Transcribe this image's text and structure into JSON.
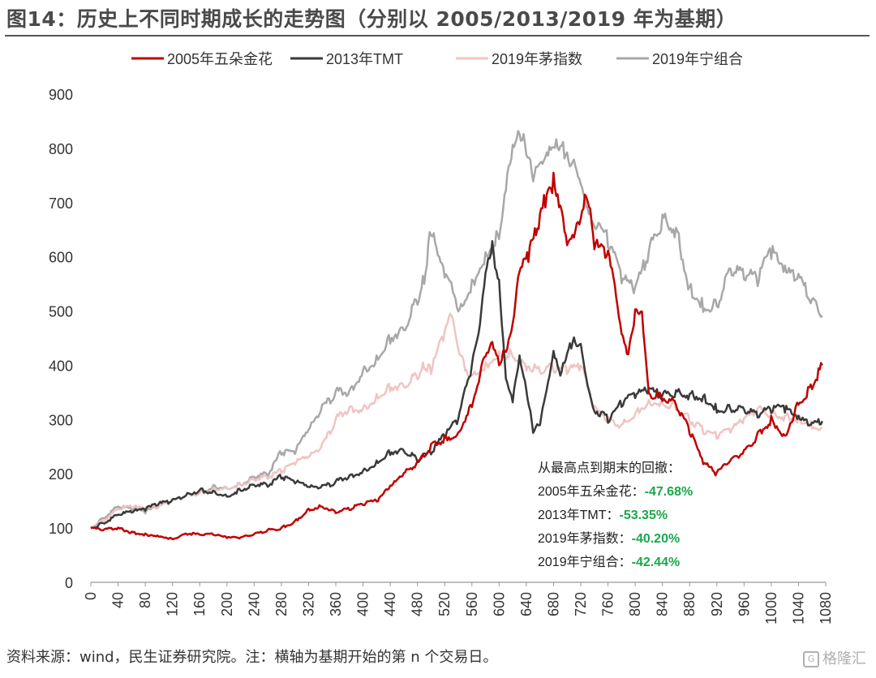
{
  "title": "图14：历史上不同时期成长的走势图（分别以 2005/2013/2019 年为基期）",
  "footer": "资料来源：wind，民生证券研究院。注：横轴为基期开始的第 n 个交易日。",
  "watermark": "格隆汇",
  "chart_data": {
    "type": "line",
    "xlim": [
      0,
      1080
    ],
    "ylim": [
      0,
      900
    ],
    "x_ticks": [
      0,
      40,
      80,
      120,
      160,
      200,
      240,
      280,
      320,
      360,
      400,
      440,
      480,
      520,
      560,
      600,
      640,
      680,
      720,
      760,
      800,
      840,
      880,
      920,
      960,
      1000,
      1040,
      1080
    ],
    "y_ticks": [
      0,
      100,
      200,
      300,
      400,
      500,
      600,
      700,
      800,
      900
    ],
    "legend_position": "top",
    "series": [
      {
        "name": "2005年五朵金花",
        "color": "#c00000",
        "width": 2.5,
        "points": [
          [
            0,
            100
          ],
          [
            20,
            97
          ],
          [
            40,
            100
          ],
          [
            60,
            92
          ],
          [
            80,
            88
          ],
          [
            100,
            86
          ],
          [
            120,
            80
          ],
          [
            140,
            90
          ],
          [
            160,
            88
          ],
          [
            180,
            88
          ],
          [
            200,
            82
          ],
          [
            220,
            82
          ],
          [
            240,
            88
          ],
          [
            260,
            96
          ],
          [
            280,
            100
          ],
          [
            300,
            112
          ],
          [
            320,
            135
          ],
          [
            340,
            140
          ],
          [
            360,
            130
          ],
          [
            380,
            135
          ],
          [
            400,
            145
          ],
          [
            420,
            150
          ],
          [
            440,
            175
          ],
          [
            460,
            200
          ],
          [
            480,
            220
          ],
          [
            500,
            250
          ],
          [
            520,
            265
          ],
          [
            540,
            275
          ],
          [
            560,
            330
          ],
          [
            580,
            420
          ],
          [
            590,
            450
          ],
          [
            600,
            400
          ],
          [
            610,
            430
          ],
          [
            620,
            470
          ],
          [
            630,
            570
          ],
          [
            645,
            610
          ],
          [
            660,
            670
          ],
          [
            670,
            715
          ],
          [
            680,
            740
          ],
          [
            690,
            700
          ],
          [
            700,
            630
          ],
          [
            710,
            650
          ],
          [
            720,
            680
          ],
          [
            730,
            715
          ],
          [
            740,
            620
          ],
          [
            760,
            610
          ],
          [
            770,
            540
          ],
          [
            780,
            450
          ],
          [
            790,
            420
          ],
          [
            800,
            500
          ],
          [
            810,
            500
          ],
          [
            820,
            350
          ],
          [
            840,
            340
          ],
          [
            860,
            330
          ],
          [
            880,
            280
          ],
          [
            900,
            220
          ],
          [
            920,
            200
          ],
          [
            940,
            225
          ],
          [
            960,
            240
          ],
          [
            980,
            270
          ],
          [
            1000,
            300
          ],
          [
            1020,
            270
          ],
          [
            1040,
            330
          ],
          [
            1060,
            360
          ],
          [
            1075,
            400
          ]
        ]
      },
      {
        "name": "2013年TMT",
        "color": "#3a3a3a",
        "width": 2.5,
        "points": [
          [
            0,
            100
          ],
          [
            20,
            110
          ],
          [
            40,
            125
          ],
          [
            60,
            130
          ],
          [
            80,
            135
          ],
          [
            100,
            145
          ],
          [
            120,
            150
          ],
          [
            140,
            160
          ],
          [
            160,
            170
          ],
          [
            180,
            165
          ],
          [
            200,
            160
          ],
          [
            220,
            170
          ],
          [
            240,
            180
          ],
          [
            260,
            180
          ],
          [
            280,
            195
          ],
          [
            300,
            185
          ],
          [
            320,
            175
          ],
          [
            340,
            175
          ],
          [
            360,
            185
          ],
          [
            380,
            195
          ],
          [
            400,
            205
          ],
          [
            420,
            220
          ],
          [
            440,
            240
          ],
          [
            460,
            245
          ],
          [
            480,
            225
          ],
          [
            500,
            240
          ],
          [
            520,
            270
          ],
          [
            540,
            300
          ],
          [
            560,
            400
          ],
          [
            570,
            450
          ],
          [
            580,
            560
          ],
          [
            590,
            620
          ],
          [
            600,
            550
          ],
          [
            610,
            380
          ],
          [
            620,
            340
          ],
          [
            630,
            420
          ],
          [
            640,
            360
          ],
          [
            650,
            280
          ],
          [
            660,
            290
          ],
          [
            670,
            350
          ],
          [
            680,
            420
          ],
          [
            690,
            380
          ],
          [
            700,
            420
          ],
          [
            710,
            450
          ],
          [
            720,
            440
          ],
          [
            730,
            370
          ],
          [
            740,
            320
          ],
          [
            760,
            300
          ],
          [
            780,
            330
          ],
          [
            800,
            345
          ],
          [
            820,
            355
          ],
          [
            840,
            345
          ],
          [
            860,
            350
          ],
          [
            880,
            345
          ],
          [
            900,
            340
          ],
          [
            920,
            320
          ],
          [
            940,
            320
          ],
          [
            960,
            320
          ],
          [
            980,
            310
          ],
          [
            1000,
            320
          ],
          [
            1020,
            320
          ],
          [
            1040,
            300
          ],
          [
            1060,
            290
          ],
          [
            1075,
            297
          ]
        ]
      },
      {
        "name": "2019年茅指数",
        "color": "#f0c4c4",
        "width": 2.5,
        "points": [
          [
            0,
            100
          ],
          [
            20,
            115
          ],
          [
            40,
            135
          ],
          [
            60,
            140
          ],
          [
            80,
            135
          ],
          [
            100,
            140
          ],
          [
            120,
            150
          ],
          [
            140,
            160
          ],
          [
            160,
            165
          ],
          [
            180,
            170
          ],
          [
            200,
            175
          ],
          [
            220,
            180
          ],
          [
            240,
            190
          ],
          [
            260,
            195
          ],
          [
            280,
            205
          ],
          [
            300,
            220
          ],
          [
            320,
            230
          ],
          [
            340,
            250
          ],
          [
            360,
            300
          ],
          [
            380,
            320
          ],
          [
            400,
            320
          ],
          [
            420,
            340
          ],
          [
            440,
            360
          ],
          [
            460,
            365
          ],
          [
            480,
            380
          ],
          [
            490,
            400
          ],
          [
            500,
            390
          ],
          [
            520,
            460
          ],
          [
            530,
            490
          ],
          [
            540,
            420
          ],
          [
            560,
            375
          ],
          [
            580,
            400
          ],
          [
            600,
            420
          ],
          [
            620,
            420
          ],
          [
            640,
            400
          ],
          [
            660,
            390
          ],
          [
            680,
            395
          ],
          [
            700,
            390
          ],
          [
            720,
            400
          ],
          [
            740,
            320
          ],
          [
            760,
            300
          ],
          [
            780,
            290
          ],
          [
            800,
            310
          ],
          [
            820,
            335
          ],
          [
            840,
            330
          ],
          [
            860,
            325
          ],
          [
            880,
            300
          ],
          [
            900,
            280
          ],
          [
            920,
            270
          ],
          [
            940,
            280
          ],
          [
            960,
            300
          ],
          [
            980,
            320
          ],
          [
            1000,
            310
          ],
          [
            1020,
            305
          ],
          [
            1040,
            300
          ],
          [
            1060,
            290
          ],
          [
            1075,
            285
          ]
        ]
      },
      {
        "name": "2019年宁组合",
        "color": "#a8a8a8",
        "width": 2.5,
        "points": [
          [
            0,
            100
          ],
          [
            20,
            120
          ],
          [
            40,
            140
          ],
          [
            60,
            135
          ],
          [
            80,
            130
          ],
          [
            100,
            140
          ],
          [
            120,
            150
          ],
          [
            140,
            160
          ],
          [
            160,
            165
          ],
          [
            180,
            175
          ],
          [
            200,
            175
          ],
          [
            220,
            180
          ],
          [
            240,
            195
          ],
          [
            260,
            200
          ],
          [
            280,
            240
          ],
          [
            300,
            240
          ],
          [
            320,
            280
          ],
          [
            340,
            320
          ],
          [
            360,
            350
          ],
          [
            380,
            350
          ],
          [
            400,
            390
          ],
          [
            420,
            410
          ],
          [
            440,
            450
          ],
          [
            460,
            470
          ],
          [
            480,
            520
          ],
          [
            490,
            560
          ],
          [
            500,
            650
          ],
          [
            510,
            600
          ],
          [
            520,
            560
          ],
          [
            530,
            540
          ],
          [
            540,
            490
          ],
          [
            560,
            550
          ],
          [
            580,
            600
          ],
          [
            600,
            640
          ],
          [
            610,
            740
          ],
          [
            620,
            810
          ],
          [
            630,
            840
          ],
          [
            640,
            800
          ],
          [
            650,
            740
          ],
          [
            660,
            760
          ],
          [
            670,
            780
          ],
          [
            680,
            800
          ],
          [
            690,
            800
          ],
          [
            700,
            790
          ],
          [
            710,
            780
          ],
          [
            720,
            750
          ],
          [
            730,
            700
          ],
          [
            740,
            670
          ],
          [
            760,
            630
          ],
          [
            780,
            560
          ],
          [
            800,
            540
          ],
          [
            820,
            610
          ],
          [
            840,
            670
          ],
          [
            860,
            650
          ],
          [
            880,
            540
          ],
          [
            900,
            510
          ],
          [
            920,
            510
          ],
          [
            940,
            580
          ],
          [
            960,
            570
          ],
          [
            980,
            560
          ],
          [
            1000,
            610
          ],
          [
            1020,
            570
          ],
          [
            1040,
            560
          ],
          [
            1060,
            520
          ],
          [
            1075,
            492
          ]
        ]
      }
    ],
    "annotation": {
      "header": "从最高点到期末的回撤：",
      "rows": [
        {
          "label": "2005年五朵金花：",
          "value": "-47.68%"
        },
        {
          "label": "2013年TMT：",
          "value": "-53.35%"
        },
        {
          "label": "2019年茅指数：",
          "value": "-40.20%"
        },
        {
          "label": "2019年宁组合：",
          "value": "-42.44%"
        }
      ],
      "value_color": "#1aa84a"
    }
  }
}
